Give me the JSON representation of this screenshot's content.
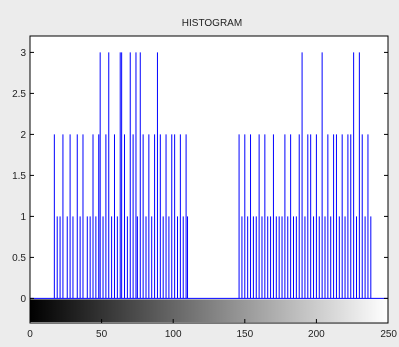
{
  "chart_data": {
    "type": "bar",
    "title": "HISTOGRAM",
    "xlabel": "",
    "ylabel": "",
    "xlim": [
      0,
      250
    ],
    "ylim": [
      -0.3,
      3.2
    ],
    "xticks": [
      0,
      50,
      100,
      150,
      200,
      250
    ],
    "xtick_labels": [
      "0",
      "50",
      "100",
      "150",
      "200",
      "250"
    ],
    "yticks": [
      0,
      0.5,
      1,
      1.5,
      2,
      2.5,
      3
    ],
    "ytick_labels": [
      "0",
      "0.5",
      "1",
      "1.5",
      "2",
      "2.5",
      "3"
    ],
    "grid": false,
    "legend": "none",
    "colorbar": {
      "position": "bottom",
      "from": "#000000",
      "to": "#ffffff",
      "range": [
        0,
        255
      ]
    },
    "series": [
      {
        "x": [
          17,
          19,
          21,
          23,
          26,
          28,
          30,
          33,
          35,
          37,
          40,
          42,
          44,
          46,
          48,
          49,
          51,
          53,
          55,
          57,
          59,
          61,
          63,
          64,
          66,
          68,
          70,
          72,
          74,
          75,
          77,
          79,
          81,
          83,
          85,
          87,
          89,
          91,
          93,
          95,
          97,
          99,
          101,
          103,
          105,
          107,
          109,
          110,
          146,
          148,
          150,
          152,
          154,
          156,
          158,
          160,
          162,
          164,
          166,
          168,
          170,
          172,
          174,
          176,
          178,
          180,
          182,
          184,
          186,
          188,
          190,
          192,
          194,
          196,
          198,
          200,
          202,
          204,
          206,
          208,
          210,
          212,
          214,
          216,
          218,
          220,
          222,
          224,
          226,
          228,
          230,
          232,
          234,
          236,
          238
        ],
        "values": [
          2,
          1,
          1,
          2,
          1,
          2,
          1,
          2,
          1,
          2,
          1,
          1,
          2,
          1,
          2,
          3,
          1,
          2,
          3,
          1,
          2,
          1,
          3,
          3,
          2,
          1,
          3,
          2,
          3,
          1,
          3,
          2,
          1,
          2,
          1,
          2,
          3,
          2,
          1,
          2,
          1,
          2,
          2,
          1,
          2,
          1,
          2,
          1,
          2,
          1,
          2,
          1,
          2,
          1,
          1,
          2,
          1,
          2,
          1,
          1,
          2,
          1,
          1,
          1,
          2,
          1,
          2,
          1,
          1,
          2,
          3,
          1,
          2,
          2,
          1,
          2,
          1,
          3,
          1,
          2,
          1,
          2,
          2,
          1,
          2,
          1,
          2,
          2,
          3,
          1,
          3,
          2,
          1,
          2,
          1
        ]
      }
    ],
    "bar_color": "#0000ff"
  }
}
